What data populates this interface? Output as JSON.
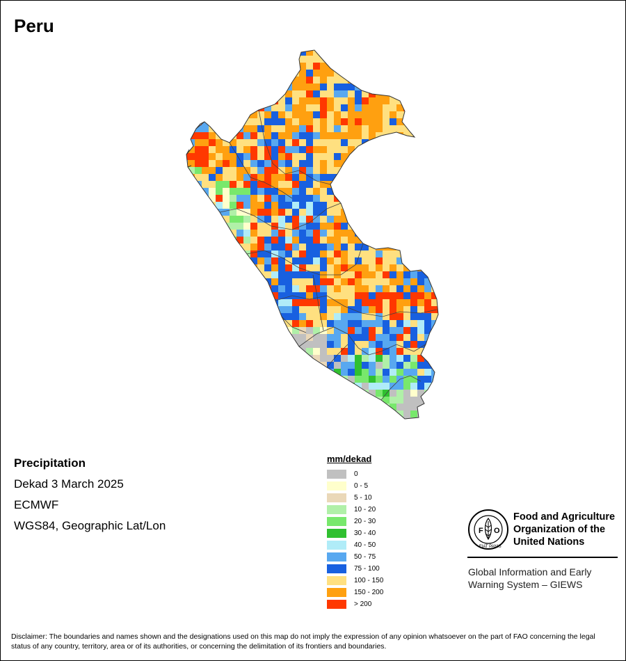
{
  "title": "Peru",
  "info": {
    "variable": "Precipitation",
    "period": "Dekad 3 March 2025",
    "source": "ECMWF",
    "projection": "WGS84, Geographic Lat/Lon"
  },
  "legend": {
    "title": "mm/dekad",
    "items": [
      {
        "label": "0",
        "color": "#c0c0c0"
      },
      {
        "label": "0 - 5",
        "color": "#ffffcc"
      },
      {
        "label": "5 - 10",
        "color": "#ead8b8"
      },
      {
        "label": "10 - 20",
        "color": "#b0f0a8"
      },
      {
        "label": "20 - 30",
        "color": "#78e86c"
      },
      {
        "label": "30 - 40",
        "color": "#30c030"
      },
      {
        "label": "40 - 50",
        "color": "#b0ecf8"
      },
      {
        "label": "50 - 75",
        "color": "#58a8f0"
      },
      {
        "label": "75 - 100",
        "color": "#1860e0"
      },
      {
        "label": "100 - 150",
        "color": "#ffe080"
      },
      {
        "label": "150 - 200",
        "color": "#ffa010"
      },
      {
        "label": "> 200",
        "color": "#ff3800"
      }
    ]
  },
  "organization": {
    "logo_text": "FAO",
    "logo_motto": "FIAT PANIS",
    "name_line1": "Food and Agriculture",
    "name_line2": "Organization of the",
    "name_line3": "United Nations",
    "program_line1": "Global Information and Early",
    "program_line2": "Warning System – GIEWS"
  },
  "disclaimer": "Disclaimer: The boundaries and names shown and the designations used on this map do not imply the expression of any opinion whatsoever on the part of FAO concerning the legal status of any country, territory, area or of its authorities, or concerning the delimitation of its frontiers and boundaries."
}
